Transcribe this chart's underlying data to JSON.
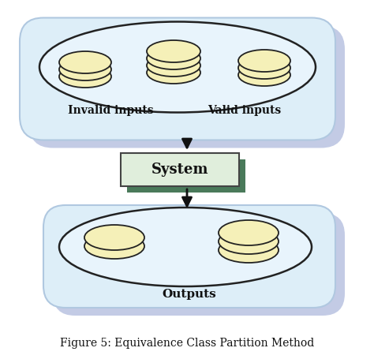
{
  "title": "Figure 5: Equivalence Class Partition Method",
  "title_fontsize": 10,
  "bg_color": "#ffffff",
  "outer_box_fill": "#ddeef8",
  "outer_box_edge": "#b0c8e0",
  "outer_shadow_color": "#8899cc",
  "plate_fill": "#e8f4fc",
  "plate_edge": "#222222",
  "disk_fill": "#f5f0b8",
  "disk_edge": "#222222",
  "system_fill": "#e0eedc",
  "system_shadow": "#4a7a5a",
  "system_edge": "#444444",
  "arrow_color": "#111111",
  "label_color": "#111111",
  "label_invalid": "Invalid inputs",
  "label_valid": "Valid inputs",
  "label_system": "System",
  "label_outputs": "Outputs"
}
